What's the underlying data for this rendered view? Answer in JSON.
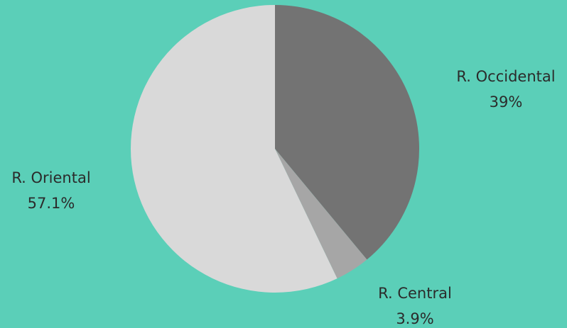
{
  "chart_data": {
    "type": "pie",
    "categories": [
      "R. Occidental",
      "R. Central",
      "R. Oriental"
    ],
    "values": [
      39,
      3.9,
      57.1
    ],
    "value_labels": [
      "39%",
      "3.9%",
      "57.1%"
    ],
    "colors": [
      "#737373",
      "#a6a6a6",
      "#d9d9d9"
    ],
    "background": "#5bcfb8",
    "start_angle_deg": 0,
    "direction": "clockwise",
    "legend": "none"
  }
}
